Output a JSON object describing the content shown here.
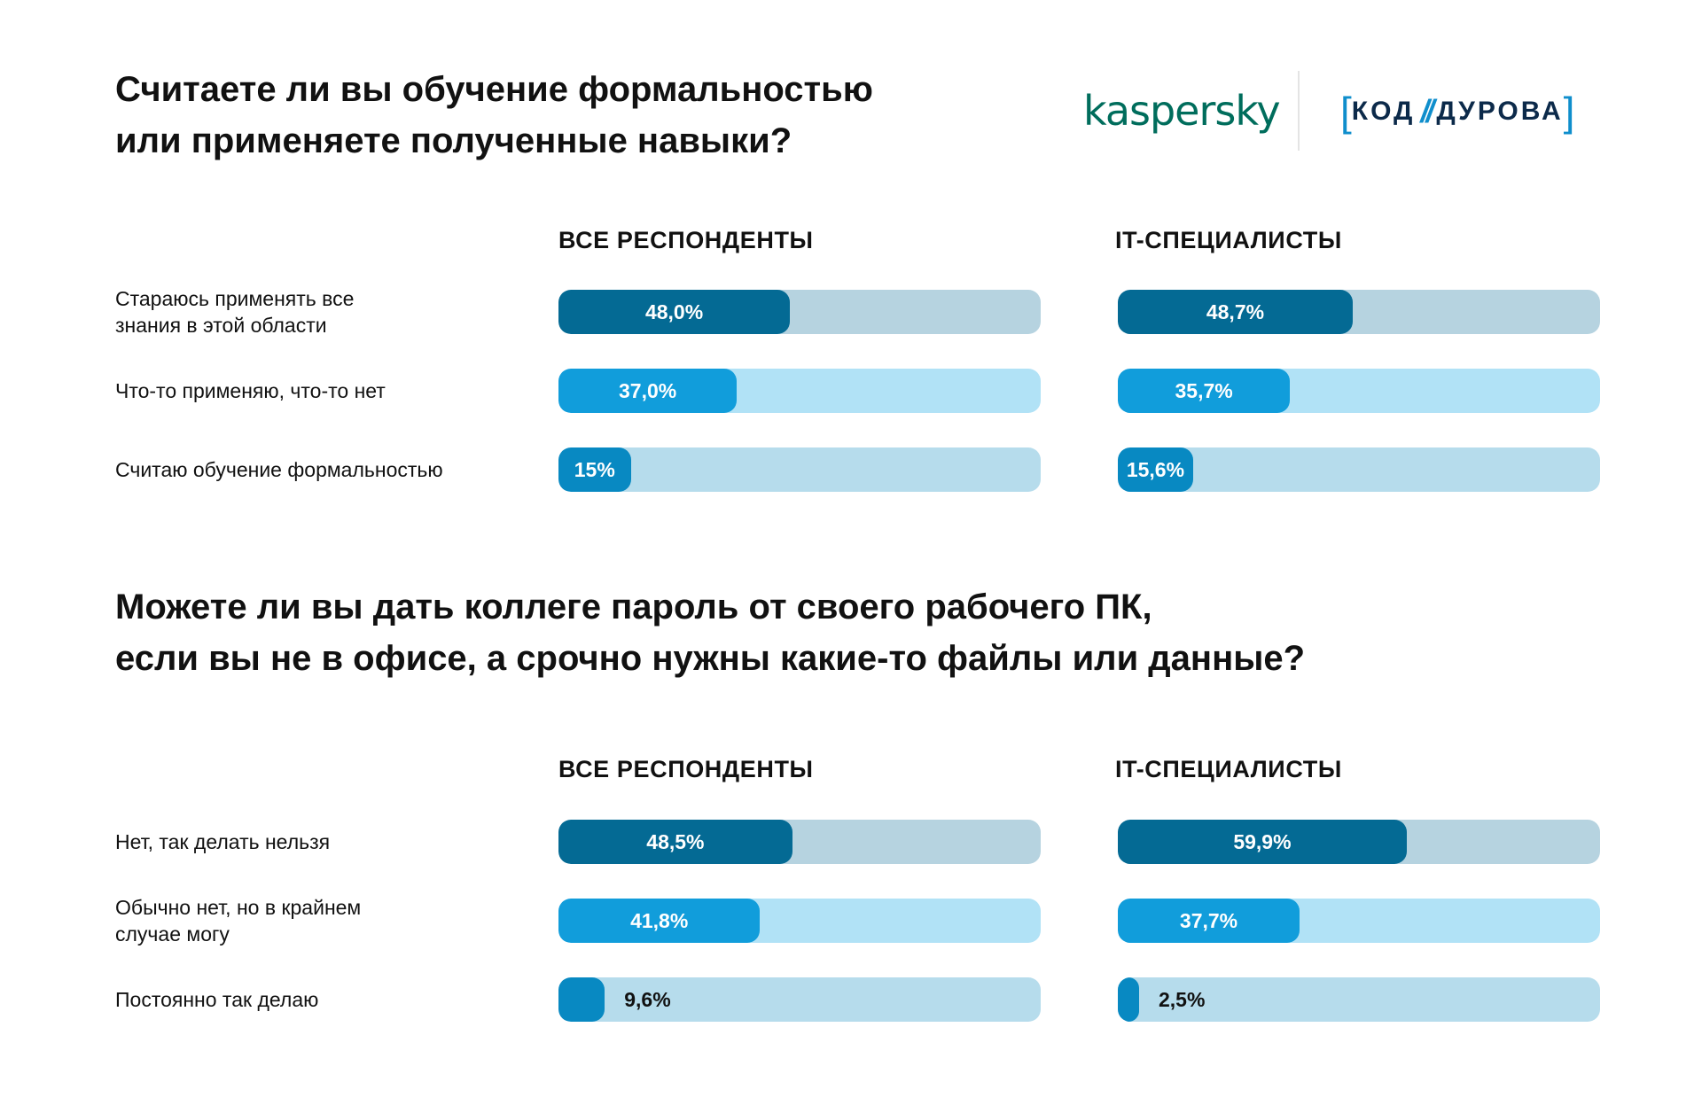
{
  "logos": {
    "kaspersky": "kaspersky",
    "partner_left": "[",
    "partner_word1": "КОД",
    "partner_slash": "//",
    "partner_word2": "ДУРОВА",
    "partner_right": "]"
  },
  "chart_data": [
    {
      "type": "bar",
      "orientation": "horizontal",
      "title_lines": [
        "Считаете ли вы обучение формальностью",
        "или применяете полученные навыки?"
      ],
      "categories": [
        "Стараюсь применять все знания в этой области",
        "Что-то применяю, что-то нет",
        "Считаю обучение формальностью"
      ],
      "category_lines": [
        [
          "Стараюсь применять все",
          "знания в этой области"
        ],
        [
          "Что-то применяю, что-то нет"
        ],
        [
          "Считаю обучение формальностью"
        ]
      ],
      "series": [
        {
          "name": "ВСЕ РЕСПОНДЕНТЫ",
          "values": [
            48.0,
            37.0,
            15
          ],
          "labels": [
            "48,0%",
            "37,0%",
            "15%"
          ]
        },
        {
          "name": "IT-СПЕЦИАЛИСТЫ",
          "values": [
            48.7,
            35.7,
            15.6
          ],
          "labels": [
            "48,7%",
            "35,7%",
            "15,6%"
          ]
        }
      ],
      "unit": "%",
      "xlim": [
        0,
        100
      ],
      "row_colors": [
        [
          "#046a94",
          "#b6d3e0"
        ],
        [
          "#119ddb",
          "#b1e2f6"
        ],
        [
          "#0889c2",
          "#b6dcec"
        ]
      ]
    },
    {
      "type": "bar",
      "orientation": "horizontal",
      "title_lines": [
        "Можете ли вы дать коллеге пароль от своего рабочего ПК,",
        "если вы не в офисе, а срочно нужны какие-то файлы или данные?"
      ],
      "categories": [
        "Нет, так делать нельзя",
        "Обычно нет, но в крайнем случае могу",
        "Постоянно так делаю"
      ],
      "category_lines": [
        [
          "Нет, так делать нельзя"
        ],
        [
          "Обычно нет, но в крайнем",
          "случае могу"
        ],
        [
          "Постоянно так делаю"
        ]
      ],
      "series": [
        {
          "name": "ВСЕ РЕСПОНДЕНТЫ",
          "values": [
            48.5,
            41.8,
            9.6
          ],
          "labels": [
            "48,5%",
            "41,8%",
            "9,6%"
          ]
        },
        {
          "name": "IT-СПЕЦИАЛИСТЫ",
          "values": [
            59.9,
            37.7,
            2.5
          ],
          "labels": [
            "59,9%",
            "37,7%",
            "2,5%"
          ]
        }
      ],
      "unit": "%",
      "xlim": [
        0,
        100
      ],
      "row_colors": [
        [
          "#046a94",
          "#b6d3e0"
        ],
        [
          "#119ddb",
          "#b1e2f6"
        ],
        [
          "#0889c2",
          "#b6dcec"
        ]
      ]
    }
  ]
}
